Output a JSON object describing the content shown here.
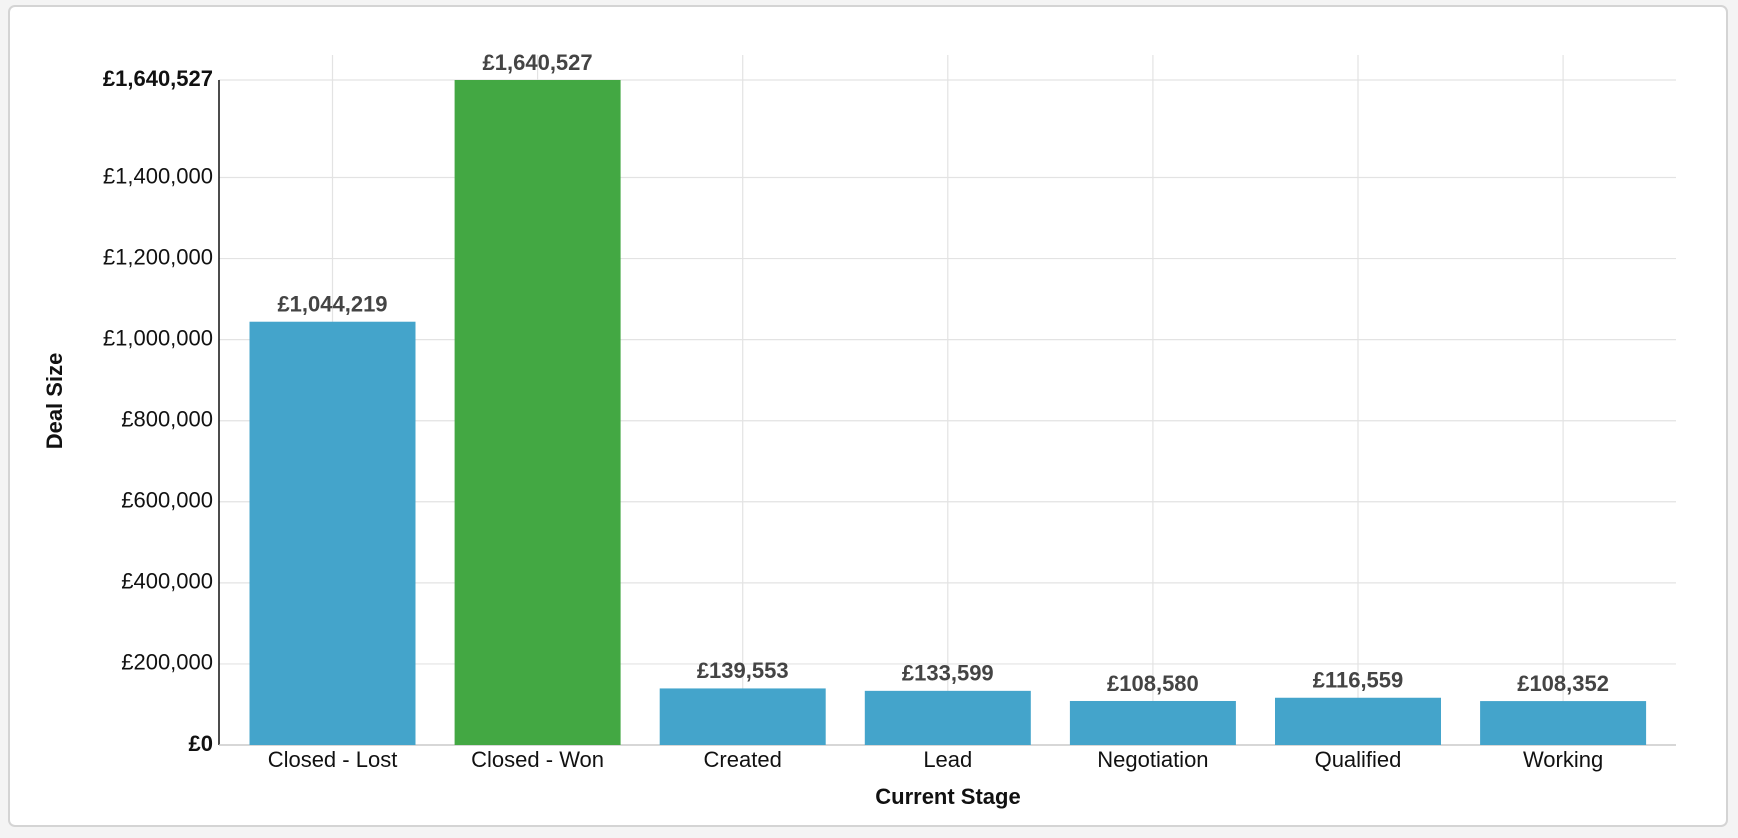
{
  "chart_data": {
    "type": "bar",
    "x_label": "Current Stage",
    "y_label": "Deal Size",
    "categories": [
      "Closed - Lost",
      "Closed - Won",
      "Created",
      "Lead",
      "Negotiation",
      "Qualified",
      "Working"
    ],
    "values": [
      1044219,
      1640527,
      139553,
      133599,
      108580,
      116559,
      108352
    ],
    "value_labels": [
      "£1,044,219",
      "£1,640,527",
      "£139,553",
      "£133,599",
      "£108,580",
      "£116,559",
      "£108,352"
    ],
    "colors": [
      "#44a4cb",
      "#43a843",
      "#44a4cb",
      "#44a4cb",
      "#44a4cb",
      "#44a4cb",
      "#44a4cb"
    ],
    "ylim": [
      0,
      1640527
    ],
    "yticks": [
      {
        "value": 0,
        "label": "£0"
      },
      {
        "value": 200000,
        "label": "£200,000"
      },
      {
        "value": 400000,
        "label": "£400,000"
      },
      {
        "value": 600000,
        "label": "£600,000"
      },
      {
        "value": 800000,
        "label": "£800,000"
      },
      {
        "value": 1000000,
        "label": "£1,000,000"
      },
      {
        "value": 1200000,
        "label": "£1,200,000"
      },
      {
        "value": 1400000,
        "label": "£1,400,000"
      },
      {
        "value": 1640527,
        "label": "£1,640,527"
      }
    ],
    "grid": true
  }
}
